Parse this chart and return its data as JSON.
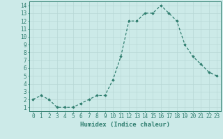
{
  "x": [
    0,
    1,
    2,
    3,
    4,
    5,
    6,
    7,
    8,
    9,
    10,
    11,
    12,
    13,
    14,
    15,
    16,
    17,
    18,
    19,
    20,
    21,
    22,
    23
  ],
  "y": [
    2,
    2.5,
    2,
    1,
    1,
    1,
    1.5,
    2,
    2.5,
    2.5,
    4.5,
    7.5,
    12,
    12,
    13,
    13,
    14,
    13,
    12,
    9,
    7.5,
    6.5,
    5.5,
    5
  ],
  "line_color": "#2e7d6e",
  "marker": "D",
  "marker_size": 1.8,
  "bg_color": "#cceae8",
  "grid_major_color": "#b8d8d6",
  "grid_minor_color": "#d4eceb",
  "xlabel": "Humidex (Indice chaleur)",
  "ylim": [
    0.5,
    14.5
  ],
  "xlim": [
    -0.5,
    23.5
  ],
  "yticks": [
    1,
    2,
    3,
    4,
    5,
    6,
    7,
    8,
    9,
    10,
    11,
    12,
    13,
    14
  ],
  "xticks": [
    0,
    1,
    2,
    3,
    4,
    5,
    6,
    7,
    8,
    9,
    10,
    11,
    12,
    13,
    14,
    15,
    16,
    17,
    18,
    19,
    20,
    21,
    22,
    23
  ],
  "xlabel_fontsize": 6.5,
  "tick_fontsize": 5.5,
  "tick_color": "#2e7d6e",
  "axis_color": "#2e7d6e",
  "linewidth": 0.9
}
